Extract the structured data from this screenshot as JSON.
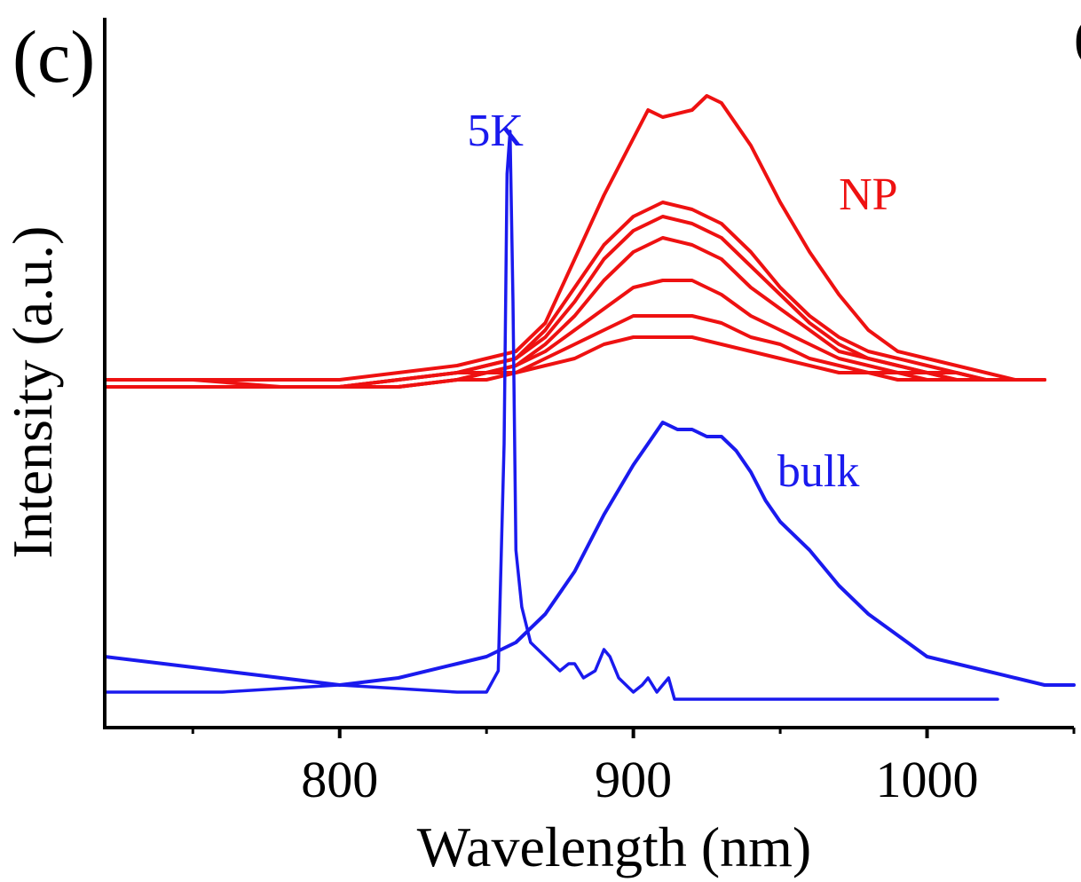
{
  "panel_label": "(c)",
  "edge_label": "(",
  "chart_data": {
    "type": "line",
    "title": "",
    "xlabel": "Wavelength (nm)",
    "ylabel": "Intensity (a.u.)",
    "xlim": [
      720,
      1050
    ],
    "ylim": [
      0,
      1
    ],
    "x_ticks": [
      800,
      900,
      1000
    ],
    "x_minor_ticks": [
      750,
      850,
      950,
      1050
    ],
    "grid": false,
    "legend": "none",
    "annotations": [
      {
        "text": "5K",
        "color": "#1a1aee",
        "x": 853,
        "y": 0.82
      },
      {
        "text": "NP",
        "color": "#ee1111",
        "x": 980,
        "y": 0.73
      },
      {
        "text": "bulk",
        "color": "#1a1aee",
        "x": 963,
        "y": 0.34
      }
    ],
    "series": [
      {
        "group": "NP",
        "color": "#ee1111",
        "x": [
          720,
          750,
          780,
          800,
          820,
          840,
          850,
          860,
          870,
          880,
          890,
          900,
          905,
          910,
          920,
          925,
          930,
          940,
          950,
          960,
          970,
          980,
          990,
          1000,
          1010,
          1020,
          1030,
          1040
        ],
        "y": [
          0.49,
          0.49,
          0.49,
          0.49,
          0.5,
          0.51,
          0.52,
          0.53,
          0.57,
          0.66,
          0.75,
          0.83,
          0.87,
          0.86,
          0.87,
          0.89,
          0.88,
          0.82,
          0.74,
          0.67,
          0.61,
          0.56,
          0.53,
          0.52,
          0.51,
          0.5,
          0.49,
          0.49
        ]
      },
      {
        "group": "NP",
        "color": "#ee1111",
        "x": [
          720,
          750,
          780,
          800,
          820,
          840,
          850,
          860,
          870,
          880,
          890,
          900,
          910,
          920,
          930,
          940,
          950,
          960,
          970,
          980,
          990,
          1000,
          1010,
          1020,
          1030,
          1040
        ],
        "y": [
          0.48,
          0.48,
          0.48,
          0.48,
          0.49,
          0.5,
          0.51,
          0.52,
          0.56,
          0.62,
          0.68,
          0.72,
          0.74,
          0.73,
          0.71,
          0.67,
          0.62,
          0.58,
          0.55,
          0.53,
          0.52,
          0.51,
          0.5,
          0.49,
          0.49,
          0.49
        ]
      },
      {
        "group": "NP",
        "color": "#ee1111",
        "x": [
          720,
          750,
          780,
          800,
          820,
          840,
          850,
          860,
          870,
          880,
          890,
          900,
          910,
          920,
          930,
          940,
          950,
          960,
          970,
          980,
          990,
          1000,
          1010,
          1020,
          1030,
          1040
        ],
        "y": [
          0.49,
          0.49,
          0.48,
          0.48,
          0.49,
          0.5,
          0.51,
          0.52,
          0.55,
          0.6,
          0.66,
          0.7,
          0.72,
          0.71,
          0.69,
          0.65,
          0.61,
          0.57,
          0.54,
          0.52,
          0.51,
          0.5,
          0.5,
          0.49,
          0.49,
          0.49
        ]
      },
      {
        "group": "NP",
        "color": "#ee1111",
        "x": [
          720,
          750,
          780,
          800,
          820,
          840,
          850,
          860,
          870,
          880,
          890,
          900,
          910,
          920,
          930,
          940,
          950,
          960,
          970,
          980,
          990,
          1000,
          1010,
          1020,
          1030,
          1040
        ],
        "y": [
          0.48,
          0.48,
          0.48,
          0.48,
          0.49,
          0.5,
          0.5,
          0.51,
          0.54,
          0.58,
          0.63,
          0.67,
          0.69,
          0.68,
          0.66,
          0.62,
          0.59,
          0.56,
          0.53,
          0.52,
          0.51,
          0.5,
          0.49,
          0.49,
          0.49,
          0.49
        ]
      },
      {
        "group": "NP",
        "color": "#ee1111",
        "x": [
          720,
          750,
          780,
          800,
          820,
          840,
          850,
          860,
          870,
          880,
          890,
          900,
          910,
          920,
          930,
          940,
          950,
          960,
          970,
          980,
          990,
          1000,
          1010,
          1020,
          1030,
          1040
        ],
        "y": [
          0.48,
          0.48,
          0.48,
          0.48,
          0.48,
          0.49,
          0.5,
          0.51,
          0.53,
          0.56,
          0.59,
          0.62,
          0.63,
          0.63,
          0.61,
          0.58,
          0.56,
          0.54,
          0.52,
          0.51,
          0.5,
          0.5,
          0.49,
          0.49,
          0.49,
          0.49
        ]
      },
      {
        "group": "NP",
        "color": "#ee1111",
        "x": [
          720,
          750,
          780,
          800,
          820,
          840,
          850,
          860,
          870,
          880,
          890,
          900,
          910,
          920,
          930,
          940,
          950,
          960,
          970,
          980,
          990,
          1000,
          1010,
          1020,
          1030,
          1040
        ],
        "y": [
          0.48,
          0.48,
          0.48,
          0.48,
          0.48,
          0.49,
          0.5,
          0.5,
          0.52,
          0.54,
          0.56,
          0.58,
          0.58,
          0.58,
          0.57,
          0.55,
          0.54,
          0.52,
          0.51,
          0.5,
          0.5,
          0.49,
          0.49,
          0.49,
          0.49,
          0.49
        ]
      },
      {
        "group": "NP",
        "color": "#ee1111",
        "x": [
          720,
          750,
          780,
          800,
          820,
          840,
          850,
          860,
          870,
          880,
          890,
          900,
          910,
          920,
          930,
          940,
          950,
          960,
          970,
          980,
          990,
          1000,
          1010,
          1020,
          1030,
          1040
        ],
        "y": [
          0.48,
          0.48,
          0.48,
          0.48,
          0.48,
          0.49,
          0.49,
          0.5,
          0.51,
          0.52,
          0.54,
          0.55,
          0.55,
          0.55,
          0.54,
          0.53,
          0.52,
          0.51,
          0.5,
          0.5,
          0.49,
          0.49,
          0.49,
          0.49,
          0.49,
          0.49
        ]
      },
      {
        "group": "bulk",
        "color": "#1a1aee",
        "x": [
          720,
          740,
          760,
          780,
          800,
          820,
          840,
          850,
          860,
          870,
          880,
          890,
          900,
          905,
          910,
          915,
          920,
          925,
          930,
          935,
          940,
          945,
          950,
          960,
          970,
          980,
          990,
          1000,
          1010,
          1020,
          1030,
          1040,
          1050
        ],
        "y": [
          0.1,
          0.09,
          0.08,
          0.07,
          0.06,
          0.07,
          0.09,
          0.1,
          0.12,
          0.16,
          0.22,
          0.3,
          0.37,
          0.4,
          0.43,
          0.42,
          0.42,
          0.41,
          0.41,
          0.39,
          0.36,
          0.32,
          0.29,
          0.25,
          0.2,
          0.16,
          0.13,
          0.1,
          0.09,
          0.08,
          0.07,
          0.06,
          0.06
        ]
      },
      {
        "group": "5K",
        "color": "#1a1aee",
        "x": [
          720,
          760,
          800,
          840,
          850,
          854,
          856,
          857,
          858,
          859,
          860,
          862,
          865,
          870,
          875,
          878,
          880,
          883,
          887,
          890,
          892,
          895,
          900,
          903,
          905,
          908,
          910,
          912,
          914,
          920,
          940,
          980,
          1024
        ],
        "y": [
          0.05,
          0.05,
          0.06,
          0.05,
          0.05,
          0.08,
          0.4,
          0.78,
          0.84,
          0.6,
          0.25,
          0.17,
          0.12,
          0.1,
          0.08,
          0.09,
          0.09,
          0.07,
          0.08,
          0.11,
          0.1,
          0.07,
          0.05,
          0.06,
          0.07,
          0.05,
          0.06,
          0.07,
          0.04,
          0.04,
          0.04,
          0.04,
          0.04
        ]
      }
    ]
  }
}
